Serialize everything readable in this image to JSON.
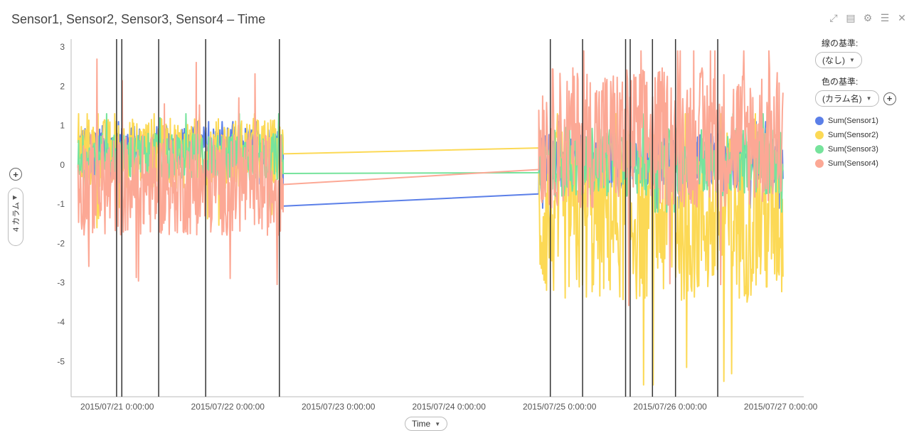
{
  "title": "Sensor1, Sensor2, Sensor3, Sensor4 – Time",
  "toolbar": {
    "icons": [
      "expand-icon",
      "export-icon",
      "gear-icon",
      "list-icon",
      "close-icon"
    ]
  },
  "legend": {
    "line_by_label": "線の基準:",
    "line_by_value": "(なし)",
    "color_by_label": "色の基準:",
    "color_by_value": "(カラム名)",
    "items": [
      {
        "label": "Sum(Sensor1)",
        "color": "#5b7fe8"
      },
      {
        "label": "Sum(Sensor2)",
        "color": "#fcd955"
      },
      {
        "label": "Sum(Sensor3)",
        "color": "#76e39c"
      },
      {
        "label": "Sum(Sensor4)",
        "color": "#fca895"
      }
    ]
  },
  "y_axis_selector": "4 カラム",
  "x_axis_selector": "Time",
  "chart_data": {
    "type": "line",
    "title": "Sensor1, Sensor2, Sensor3, Sensor4 – Time",
    "xlabel": "Time",
    "ylabel": "4 カラム",
    "x_ticks": [
      "2015/07/21 0:00:00",
      "2015/07/22 0:00:00",
      "2015/07/23 0:00:00",
      "2015/07/24 0:00:00",
      "2015/07/25 0:00:00",
      "2015/07/26 0:00:00",
      "2015/07/27 0:00:00"
    ],
    "y_ticks": [
      "3",
      "2",
      "1",
      "0",
      "-1",
      "-2",
      "-3",
      "-4",
      "-5"
    ],
    "xlim": [
      "2015/07/20 14:00",
      "2015/07/27 5:00"
    ],
    "ylim": [
      -5.9,
      3.2
    ],
    "grid": false,
    "legend_position": "right",
    "vertical_lines": [
      "2015/07/20 23:52",
      "2015/07/21 1:00",
      "2015/07/21 9:00",
      "2015/07/21 19:12",
      "2015/07/22 11:12",
      "2015/07/24 22:00",
      "2015/07/25 5:00",
      "2015/07/25 14:20",
      "2015/07/25 15:20",
      "2015/07/25 20:10",
      "2015/07/26 1:10",
      "2015/07/26 10:20"
    ],
    "segments": [
      {
        "start": "2015/07/20 15:30",
        "end": "2015/07/22 12:00"
      },
      {
        "start": "2015/07/24 19:30",
        "end": "2015/07/27 0:30"
      }
    ],
    "series": [
      {
        "name": "Sum(Sensor1)",
        "color": "#5b7fe8",
        "segment_levels": [
          {
            "mean": 0.5,
            "amp": 0.5
          },
          {
            "mean": 0.1,
            "amp": 0.7
          }
        ],
        "gap_line": [
          -1.05,
          -0.74
        ],
        "min": -1.1,
        "max": 1.1
      },
      {
        "name": "Sum(Sensor2)",
        "color": "#fcd955",
        "segment_levels": [
          {
            "mean": 0.3,
            "amp": 0.9
          },
          {
            "mean": -1.3,
            "amp": 2.2
          }
        ],
        "gap_line": [
          0.28,
          0.43
        ],
        "min": -5.6,
        "max": 1.3
      },
      {
        "name": "Sum(Sensor3)",
        "color": "#76e39c",
        "segment_levels": [
          {
            "mean": 0.2,
            "amp": 0.6
          },
          {
            "mean": 0.1,
            "amp": 0.9
          }
        ],
        "gap_line": [
          -0.22,
          -0.2
        ],
        "min": -1.2,
        "max": 1.3
      },
      {
        "name": "Sum(Sensor4)",
        "color": "#fca895",
        "segment_levels": [
          {
            "mean": -0.5,
            "amp": 1.3
          },
          {
            "mean": 0.7,
            "amp": 1.8
          }
        ],
        "gap_line": [
          -0.5,
          -0.12
        ],
        "min": -3.9,
        "max": 2.9
      }
    ]
  }
}
